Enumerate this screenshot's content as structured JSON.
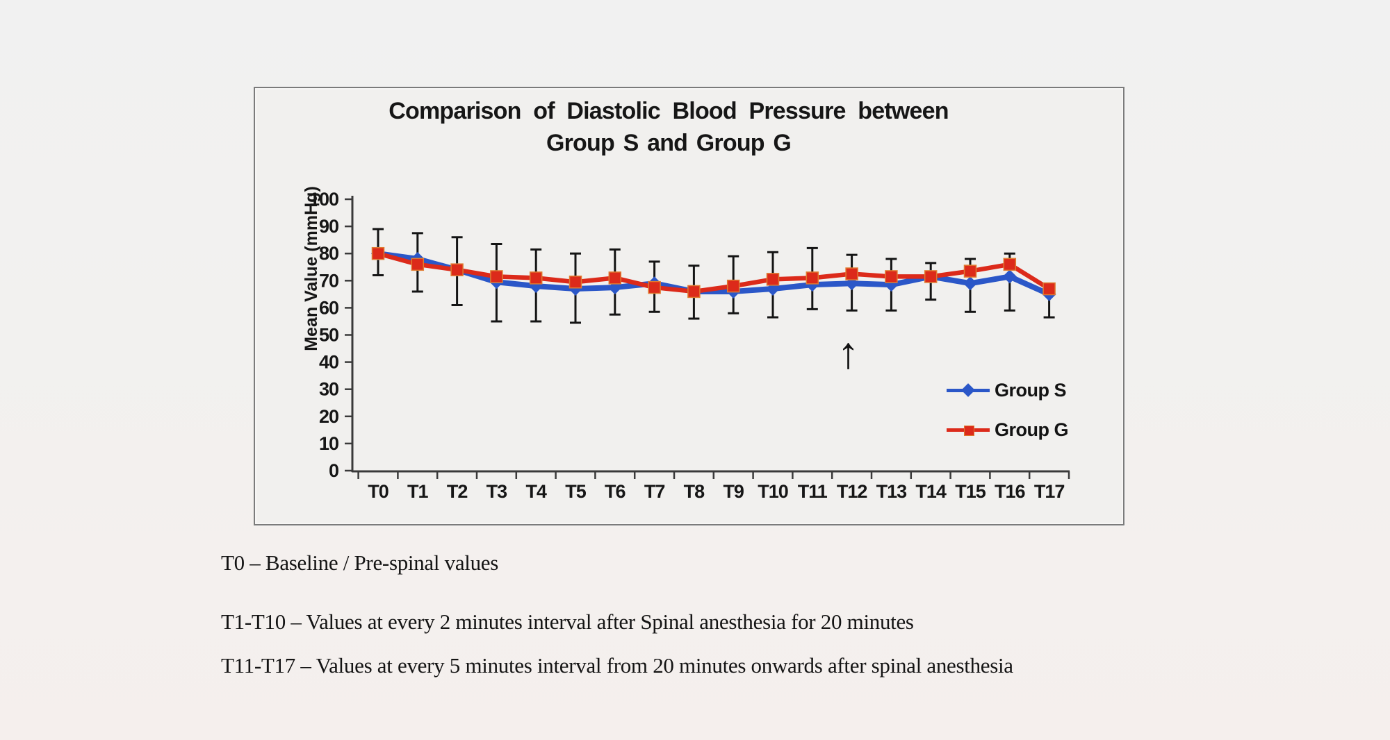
{
  "chart_data": {
    "type": "line",
    "title_line1": "Comparison of Diastolic Blood Pressure between",
    "title_line2": "Group S and Group G",
    "ylabel": "Mean Value (mmHg)",
    "ylim": [
      0,
      100
    ],
    "ytick_step": 10,
    "grid": false,
    "legend_position": "inside-right",
    "axis_color": "#3a3a3a",
    "text_color": "#161616",
    "categories": [
      "T0",
      "T1",
      "T2",
      "T3",
      "T4",
      "T5",
      "T6",
      "T7",
      "T8",
      "T9",
      "T10",
      "T11",
      "T12",
      "T13",
      "T14",
      "T15",
      "T16",
      "T17"
    ],
    "series": [
      {
        "name": "Group S",
        "color": "#2b57c8",
        "marker": "diamond",
        "values": [
          80,
          78,
          74,
          69.5,
          68,
          67,
          67.5,
          69,
          66,
          66,
          67,
          68.5,
          69,
          68.5,
          71.5,
          69,
          71.5,
          65
        ]
      },
      {
        "name": "Group G",
        "color": "#dc2a1a",
        "marker": "square",
        "marker_outline": "#e07b30",
        "values": [
          80,
          76,
          74,
          71.5,
          71,
          69.5,
          71,
          67.5,
          66,
          68,
          70.5,
          71,
          72.5,
          71.5,
          71.5,
          73.5,
          76,
          67
        ]
      }
    ],
    "error_bars": {
      "color": "#141414",
      "top": [
        89,
        87.5,
        86,
        83.5,
        81.5,
        80,
        81.5,
        77,
        75.5,
        79,
        80.5,
        82,
        79.5,
        78,
        76.5,
        78,
        80,
        68.5
      ],
      "bottom": [
        72,
        66,
        61,
        55,
        55,
        54.5,
        57.5,
        58.5,
        56,
        58,
        56.5,
        59.5,
        59,
        59,
        63,
        58.5,
        59,
        56.5
      ]
    },
    "annotation": {
      "symbol": "↑",
      "category": "T12"
    }
  },
  "notes": [
    "T0 – Baseline / Pre-spinal values",
    "T1-T10 – Values at every 2 minutes interval after Spinal anesthesia for 20 minutes",
    "T11-T17 – Values at every 5 minutes interval from 20 minutes onwards after spinal anesthesia"
  ]
}
